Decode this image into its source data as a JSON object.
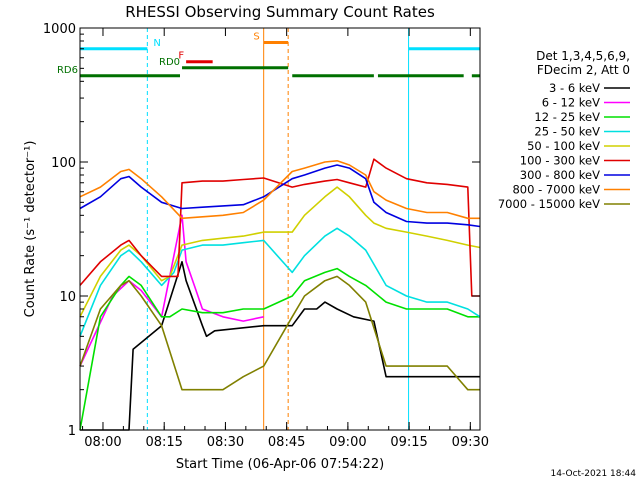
{
  "chart_data": {
    "type": "line",
    "title": "RHESSI Observing Summary Count Rates",
    "xlabel": "Start Time (06-Apr-06 07:54:22)",
    "ylabel": "Count Rate (s⁻¹ detector⁻¹)",
    "y_scale": "log",
    "ylim": [
      1,
      1000
    ],
    "xlim_minutes": [
      0,
      98
    ],
    "x_tick_labels": [
      "08:00",
      "08:15",
      "08:30",
      "08:45",
      "09:00",
      "09:15",
      "09:30"
    ],
    "x_tick_minutes": [
      5.63,
      20.63,
      35.63,
      50.63,
      65.63,
      80.63,
      95.63
    ],
    "y_tick_labels": [
      "1",
      "10",
      "100",
      "1000"
    ],
    "y_tick_values": [
      1,
      10,
      100,
      1000
    ],
    "legend": {
      "header": [
        "Det 1,3,4,5,6,9,",
        "FDecim 2, Att 0"
      ],
      "position": "right",
      "entries": [
        {
          "label": "3 - 6 keV",
          "color": "#000000"
        },
        {
          "label": "6 - 12 keV",
          "color": "#ff00ff"
        },
        {
          "label": "12 - 25 keV",
          "color": "#00e000"
        },
        {
          "label": "25 - 50 keV",
          "color": "#00e0e0"
        },
        {
          "label": "50 - 100 keV",
          "color": "#d0d000"
        },
        {
          "label": "100 - 300 keV",
          "color": "#e00000"
        },
        {
          "label": "300 - 800 keV",
          "color": "#0000e0"
        },
        {
          "label": "800 - 7000 keV",
          "color": "#ff8000"
        },
        {
          "label": "7000 - 15000 keV",
          "color": "#808000"
        }
      ]
    },
    "flag_bars": [
      {
        "label": "N",
        "color": "#00e0ff",
        "segments": [
          [
            0,
            16.5
          ],
          [
            80.5,
            98
          ]
        ],
        "level": 700
      },
      {
        "label": "F",
        "color": "#e00000",
        "segments": [
          [
            26,
            32.5
          ]
        ],
        "level": 560
      },
      {
        "label": "RD0",
        "color": "#007000",
        "segments": [
          [
            25,
            51
          ]
        ],
        "level": 505
      },
      {
        "label": "S",
        "color": "#ff8000",
        "segments": [
          [
            45,
            51
          ]
        ],
        "level": 780
      },
      {
        "label": "RD6",
        "color": "#007000",
        "segments": [
          [
            0,
            24.5
          ],
          [
            52,
            72
          ],
          [
            73,
            94
          ],
          [
            96,
            98
          ]
        ],
        "level": 440
      }
    ],
    "vertical_markers": [
      {
        "color": "#00e0ff",
        "style": "solid",
        "x": 0
      },
      {
        "color": "#00e0ff",
        "style": "dashed",
        "x": 16.5
      },
      {
        "color": "#ff8000",
        "style": "solid",
        "x": 45
      },
      {
        "color": "#ff8000",
        "style": "dashed",
        "x": 51
      },
      {
        "color": "#00e0ff",
        "style": "solid",
        "x": 80.5
      },
      {
        "color": "#00e0ff",
        "style": "dashed",
        "x": 98
      }
    ],
    "series": [
      {
        "name": "3 - 6 keV",
        "color": "#000000",
        "x": [
          0,
          12,
          13,
          20,
          25,
          26,
          30,
          31,
          33,
          45,
          52,
          55,
          58,
          60,
          63,
          67,
          72,
          75,
          80,
          98
        ],
        "y": [
          1.0,
          1.0,
          4.0,
          6.0,
          18.0,
          13.0,
          6.0,
          5.0,
          5.5,
          6.0,
          6.0,
          8.0,
          8.0,
          9.0,
          8.0,
          7.0,
          6.5,
          2.5,
          2.5,
          2.5
        ]
      },
      {
        "name": "6 - 12 keV",
        "color": "#ff00ff",
        "x": [
          0,
          8,
          12,
          15,
          20,
          25,
          26,
          28,
          30,
          35,
          40,
          45
        ],
        "y": [
          3.0,
          10.0,
          13.0,
          11.0,
          7.0,
          40.0,
          18.0,
          12.0,
          8.0,
          7.0,
          6.5,
          7.0
        ]
      },
      {
        "name": "12 - 25 keV",
        "color": "#00e000",
        "x": [
          0,
          5,
          10,
          12,
          15,
          20,
          22,
          25,
          30,
          35,
          40,
          45,
          52,
          55,
          60,
          63,
          66,
          70,
          75,
          80,
          85,
          90,
          95,
          98
        ],
        "y": [
          1.0,
          7.0,
          12.0,
          14.0,
          12.0,
          7.0,
          7.0,
          8.0,
          7.5,
          7.5,
          8.0,
          8.0,
          10.0,
          13.0,
          15.0,
          16.0,
          14.0,
          12.0,
          9.0,
          8.0,
          8.0,
          8.0,
          7.0,
          7.0
        ]
      },
      {
        "name": "25 - 50 keV",
        "color": "#00e0e0",
        "x": [
          0,
          5,
          10,
          12,
          15,
          20,
          23,
          25,
          30,
          35,
          40,
          45,
          52,
          55,
          60,
          63,
          66,
          70,
          75,
          80,
          85,
          90,
          95,
          98
        ],
        "y": [
          5.0,
          12.0,
          20.0,
          22.0,
          18.0,
          12.0,
          15.0,
          22.0,
          24.0,
          24.0,
          25.0,
          26.0,
          15.0,
          20.0,
          28.0,
          32.0,
          28.0,
          22.0,
          12.0,
          10.0,
          9.0,
          9.0,
          8.0,
          7.0
        ]
      },
      {
        "name": "50 - 100 keV",
        "color": "#d0d000",
        "x": [
          0,
          5,
          10,
          12,
          15,
          20,
          22,
          25,
          30,
          35,
          40,
          45,
          52,
          55,
          60,
          63,
          66,
          70,
          72,
          75,
          80,
          85,
          90,
          95,
          98
        ],
        "y": [
          7.0,
          14.0,
          22.0,
          24.0,
          20.0,
          13.0,
          14.0,
          24.0,
          26.0,
          27.0,
          28.0,
          30.0,
          30.0,
          40.0,
          55.0,
          65.0,
          55.0,
          40.0,
          35.0,
          32.0,
          30.0,
          28.0,
          26.0,
          24.0,
          23.0
        ]
      },
      {
        "name": "100 - 300 keV",
        "color": "#e00000",
        "x": [
          0,
          5,
          10,
          12,
          15,
          20,
          24,
          25,
          30,
          35,
          40,
          45,
          52,
          55,
          60,
          63,
          66,
          70,
          72,
          75,
          80,
          85,
          90,
          95,
          96,
          98
        ],
        "y": [
          12.0,
          18.0,
          24.0,
          26.0,
          20.0,
          14.0,
          14.0,
          70.0,
          72.0,
          72.0,
          74.0,
          76.0,
          65.0,
          68.0,
          72.0,
          74.0,
          70.0,
          65.0,
          105.0,
          90.0,
          75.0,
          70.0,
          68.0,
          65.0,
          10.0,
          10.0
        ]
      },
      {
        "name": "300 - 800 keV",
        "color": "#0000e0",
        "x": [
          0,
          5,
          10,
          12,
          15,
          20,
          25,
          30,
          35,
          40,
          45,
          52,
          55,
          60,
          63,
          66,
          70,
          72,
          75,
          80,
          85,
          90,
          95,
          98
        ],
        "y": [
          45.0,
          55.0,
          75.0,
          78.0,
          65.0,
          50.0,
          45.0,
          46.0,
          47.0,
          48.0,
          55.0,
          75.0,
          80.0,
          90.0,
          95.0,
          90.0,
          75.0,
          50.0,
          42.0,
          36.0,
          35.0,
          35.0,
          34.0,
          33.0
        ]
      },
      {
        "name": "800 - 7000 keV",
        "color": "#ff8000",
        "x": [
          0,
          5,
          10,
          12,
          15,
          20,
          25,
          30,
          35,
          40,
          45,
          52,
          55,
          60,
          63,
          66,
          70,
          72,
          75,
          80,
          85,
          90,
          95,
          98
        ],
        "y": [
          55.0,
          65.0,
          85.0,
          88.0,
          75.0,
          55.0,
          38.0,
          39.0,
          40.0,
          42.0,
          52.0,
          85.0,
          90.0,
          100.0,
          102.0,
          95.0,
          80.0,
          60.0,
          52.0,
          45.0,
          42.0,
          42.0,
          38.0,
          38.0
        ]
      },
      {
        "name": "7000 - 15000 keV",
        "color": "#808000",
        "x": [
          0,
          5,
          10,
          12,
          15,
          20,
          25,
          30,
          35,
          40,
          45,
          52,
          55,
          60,
          63,
          66,
          70,
          75,
          80,
          85,
          90,
          95,
          98
        ],
        "y": [
          3.0,
          8.0,
          12.0,
          13.0,
          10.0,
          6.0,
          2.0,
          2.0,
          2.0,
          2.5,
          3.0,
          7.0,
          10.0,
          13.0,
          14.0,
          12.0,
          9.0,
          3.0,
          3.0,
          3.0,
          3.0,
          2.0,
          2.0
        ]
      }
    ]
  },
  "footer": {
    "date_stamp": "14-Oct-2021 18:44"
  }
}
